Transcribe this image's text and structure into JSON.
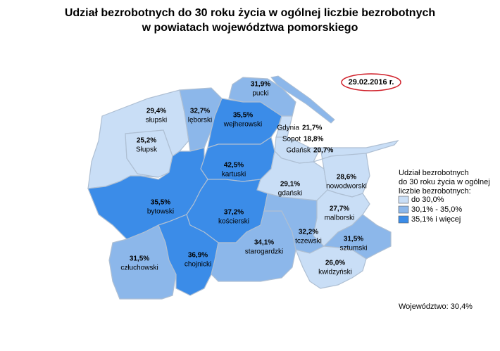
{
  "title": [
    "Udział bezrobotnych do 30 roku życia w ogólnej liczbie bezrobotnych",
    "w powiatach województwa pomorskiego"
  ],
  "date": "29.02.2016 r.",
  "legend": {
    "title": [
      "Udział bezrobotnych",
      "do 30 roku życia w ogólnej",
      "liczbie bezrobotnych:"
    ],
    "items": [
      {
        "label": "do 30,0%",
        "color": "#c9def6"
      },
      {
        "label": "30,1% - 35,0%",
        "color": "#8cb7ea"
      },
      {
        "label": "35,1% i więcej",
        "color": "#3b8ce8"
      }
    ]
  },
  "regions": [
    {
      "name": "pucki",
      "value": 31.9,
      "value_label": "31,9%",
      "color": "#8cb7ea"
    },
    {
      "name": "słupski",
      "value": 29.4,
      "value_label": "29,4%",
      "color": "#c9def6"
    },
    {
      "name": "Słupsk",
      "value": 25.2,
      "value_label": "25,2%",
      "color": "#c9def6"
    },
    {
      "name": "lęborski",
      "value": 32.7,
      "value_label": "32,7%",
      "color": "#8cb7ea"
    },
    {
      "name": "wejherowski",
      "value": 35.5,
      "value_label": "35,5%",
      "color": "#3b8ce8"
    },
    {
      "name": "Gdynia",
      "value": 21.7,
      "value_label": "21,7%",
      "color": "#c9def6"
    },
    {
      "name": "Sopot",
      "value": 18.8,
      "value_label": "18,8%",
      "color": "#c9def6"
    },
    {
      "name": "Gdańsk",
      "value": 20.7,
      "value_label": "20,7%",
      "color": "#c9def6"
    },
    {
      "name": "kartuski",
      "value": 42.5,
      "value_label": "42,5%",
      "color": "#3b8ce8"
    },
    {
      "name": "gdański",
      "value": 29.1,
      "value_label": "29,1%",
      "color": "#c9def6"
    },
    {
      "name": "nowodworski",
      "value": 28.6,
      "value_label": "28,6%",
      "color": "#c9def6"
    },
    {
      "name": "bytowski",
      "value": 35.5,
      "value_label": "35,5%",
      "color": "#3b8ce8"
    },
    {
      "name": "kościerski",
      "value": 37.2,
      "value_label": "37,2%",
      "color": "#3b8ce8"
    },
    {
      "name": "człuchowski",
      "value": 31.5,
      "value_label": "31,5%",
      "color": "#8cb7ea"
    },
    {
      "name": "chojnicki",
      "value": 36.9,
      "value_label": "36,9%",
      "color": "#3b8ce8"
    },
    {
      "name": "starogardzki",
      "value": 34.1,
      "value_label": "34,1%",
      "color": "#8cb7ea"
    },
    {
      "name": "tczewski",
      "value": 32.2,
      "value_label": "32,2%",
      "color": "#8cb7ea"
    },
    {
      "name": "malborski",
      "value": 27.7,
      "value_label": "27,7%",
      "color": "#c9def6"
    },
    {
      "name": "sztumski",
      "value": 31.5,
      "value_label": "31,5%",
      "color": "#8cb7ea"
    },
    {
      "name": "kwidzyński",
      "value": 26.0,
      "value_label": "26,0%",
      "color": "#c9def6"
    }
  ],
  "footer": "Województwo: 30,4%"
}
